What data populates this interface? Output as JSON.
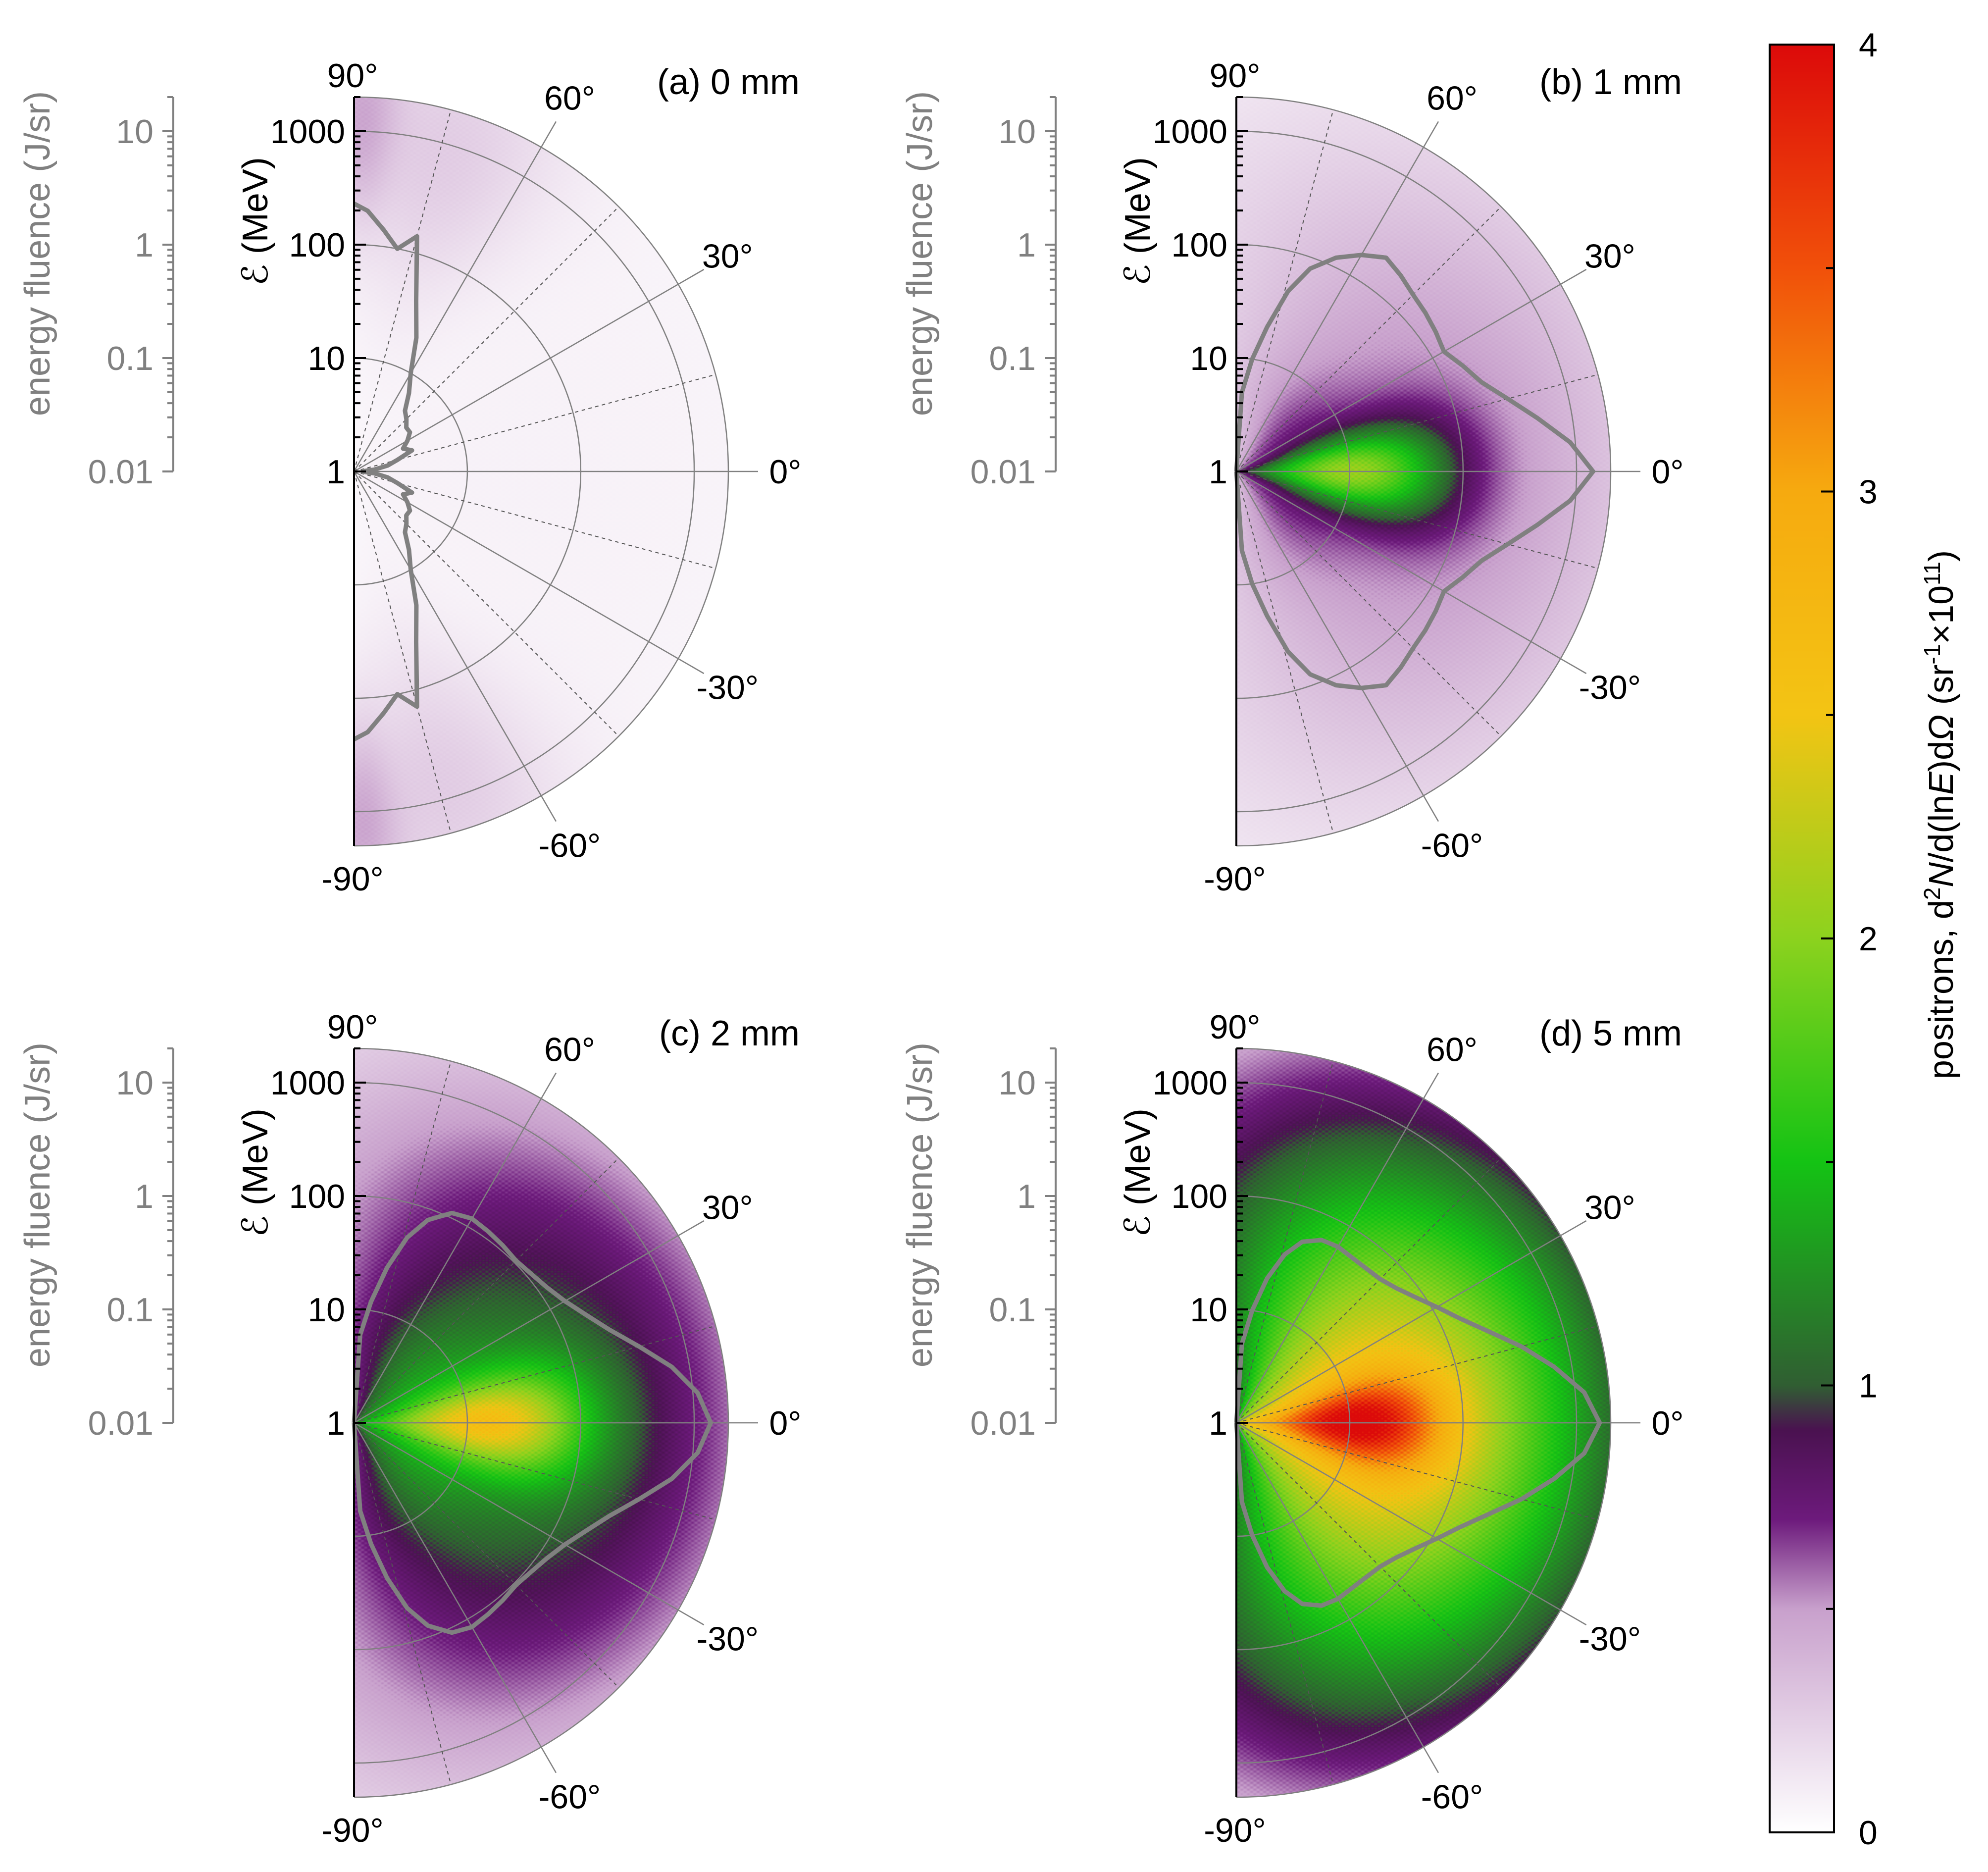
{
  "colors": {
    "purple": "#5e0f6e",
    "green": "#1ec81e",
    "yellow": "#f6c30f",
    "red": "#e8120e",
    "contour": "#808080",
    "grid": "#808080",
    "fluence_axis": "#808080"
  },
  "chart_data": [
    {
      "type": "heatmap",
      "subtype": "polar-half",
      "title": "(a) 0 mm",
      "ylabel": "ℰ (MeV)",
      "fluence_label": "energy fluence (J/sr)",
      "energy_axis": {
        "scale": "log",
        "range": [
          1,
          2000
        ],
        "ticks": [
          1,
          10,
          100,
          1000
        ],
        "tick_labels": [
          "1",
          "10",
          "100",
          "1000"
        ]
      },
      "fluence_axis": {
        "scale": "log",
        "range": [
          0.01,
          20
        ],
        "ticks": [
          0.01,
          0.1,
          1,
          10
        ],
        "tick_labels": [
          "0.01",
          "0.1",
          "1",
          "10"
        ]
      },
      "angle_axis": {
        "range": [
          -90,
          90
        ],
        "ticks": [
          -90,
          -60,
          -30,
          0,
          30,
          60,
          90
        ],
        "tick_labels": [
          "-90°",
          "-60°",
          "-30°",
          "0°",
          "30°",
          "60°",
          "90°"
        ]
      },
      "blobs": [
        {
          "angle": 0,
          "spread": 90,
          "energy": 30,
          "spread_decades": 3.3,
          "value": 0.07
        },
        {
          "angle": 75,
          "spread": 14,
          "energy": 800,
          "spread_decades": 0.9,
          "value": 0.22
        },
        {
          "angle": -75,
          "spread": 14,
          "energy": 800,
          "spread_decades": 0.9,
          "value": 0.22
        },
        {
          "angle": 89,
          "spread": 4,
          "energy": 1500,
          "spread_decades": 0.6,
          "value": 0.3
        },
        {
          "angle": -89,
          "spread": 4,
          "energy": 1500,
          "spread_decades": 0.6,
          "value": 0.3
        }
      ],
      "fluence_curve": {
        "angles": [
          90,
          87,
          83,
          79,
          75,
          70,
          65,
          60,
          55,
          50,
          45,
          40,
          35,
          30,
          25,
          20,
          15,
          10,
          5,
          2,
          0,
          -2,
          -5,
          -10,
          -15,
          -20,
          -25,
          -30,
          -35,
          -40,
          -45,
          -50,
          -55,
          -60,
          -65,
          -70,
          -75,
          -79,
          -83,
          -87,
          -90
        ],
        "fluence": [
          2.3,
          2.0,
          1.4,
          1.0,
          1.4,
          0.4,
          0.2,
          0.1,
          0.07,
          0.05,
          0.045,
          0.04,
          0.04,
          0.035,
          0.03,
          0.035,
          0.025,
          0.02,
          0.015,
          0.012,
          0.012,
          0.012,
          0.015,
          0.02,
          0.025,
          0.035,
          0.03,
          0.035,
          0.04,
          0.04,
          0.045,
          0.05,
          0.07,
          0.1,
          0.2,
          0.4,
          1.4,
          1.0,
          1.4,
          2.0,
          2.3
        ]
      }
    },
    {
      "type": "heatmap",
      "subtype": "polar-half",
      "title": "(b) 1 mm",
      "ylabel": "ℰ (MeV)",
      "fluence_label": "energy fluence (J/sr)",
      "energy_axis": {
        "scale": "log",
        "range": [
          1,
          2000
        ],
        "ticks": [
          1,
          10,
          100,
          1000
        ],
        "tick_labels": [
          "1",
          "10",
          "100",
          "1000"
        ]
      },
      "fluence_axis": {
        "scale": "log",
        "range": [
          0.01,
          20
        ],
        "ticks": [
          0.01,
          0.1,
          1,
          10
        ],
        "tick_labels": [
          "0.01",
          "0.1",
          "1",
          "10"
        ]
      },
      "angle_axis": {
        "range": [
          -90,
          90
        ],
        "ticks": [
          -90,
          -60,
          -30,
          0,
          30,
          60,
          90
        ],
        "tick_labels": [
          "-90°",
          "-60°",
          "-30°",
          "0°",
          "30°",
          "60°",
          "90°"
        ]
      },
      "blobs": [
        {
          "angle": 0,
          "spread": 70,
          "energy": 15,
          "spread_decades": 1.9,
          "value": 0.6
        },
        {
          "angle": 0,
          "spread": 12,
          "energy": 12,
          "spread_decades": 0.55,
          "value": 1.35
        },
        {
          "angle": 0,
          "spread": 55,
          "energy": 3,
          "spread_decades": 0.45,
          "value": 0.25
        }
      ],
      "fluence_curve": {
        "angles": [
          90,
          86,
          82,
          78,
          74,
          70,
          65,
          60,
          55,
          50,
          45,
          40,
          35,
          30,
          25,
          20,
          15,
          10,
          5,
          0,
          -5,
          -10,
          -15,
          -20,
          -25,
          -30,
          -35,
          -40,
          -45,
          -50,
          -55,
          -60,
          -65,
          -70,
          -74,
          -78,
          -82,
          -86,
          -90
        ],
        "fluence": [
          0.01,
          0.05,
          0.1,
          0.2,
          0.45,
          0.8,
          1.2,
          1.6,
          2.0,
          1.8,
          1.6,
          1.5,
          1.4,
          1.3,
          1.6,
          2.0,
          3.0,
          5.0,
          9.0,
          14.0,
          9.0,
          5.0,
          3.0,
          2.0,
          1.6,
          1.3,
          1.4,
          1.5,
          1.6,
          1.8,
          2.0,
          1.6,
          1.2,
          0.8,
          0.45,
          0.2,
          0.1,
          0.05,
          0.01
        ]
      }
    },
    {
      "type": "heatmap",
      "subtype": "polar-half",
      "title": "(c) 2 mm",
      "ylabel": "ℰ (MeV)",
      "fluence_label": "energy fluence (J/sr)",
      "energy_axis": {
        "scale": "log",
        "range": [
          1,
          2000
        ],
        "ticks": [
          1,
          10,
          100,
          1000
        ],
        "tick_labels": [
          "1",
          "10",
          "100",
          "1000"
        ]
      },
      "fluence_axis": {
        "scale": "log",
        "range": [
          0.01,
          20
        ],
        "ticks": [
          0.01,
          0.1,
          1,
          10
        ],
        "tick_labels": [
          "0.01",
          "0.1",
          "1",
          "10"
        ]
      },
      "angle_axis": {
        "range": [
          -90,
          90
        ],
        "ticks": [
          -90,
          -60,
          -30,
          0,
          30,
          60,
          90
        ],
        "tick_labels": [
          "-90°",
          "-60°",
          "-30°",
          "0°",
          "30°",
          "60°",
          "90°"
        ]
      },
      "blobs": [
        {
          "angle": 0,
          "spread": 72,
          "energy": 12,
          "spread_decades": 1.8,
          "value": 1.25
        },
        {
          "angle": 0,
          "spread": 12,
          "energy": 18,
          "spread_decades": 0.55,
          "value": 1.3
        },
        {
          "angle": 0,
          "spread": 68,
          "energy": 3,
          "spread_decades": 0.5,
          "value": 0.3
        }
      ],
      "fluence_curve": {
        "angles": [
          90,
          86,
          82,
          78,
          74,
          70,
          65,
          60,
          55,
          50,
          45,
          40,
          35,
          30,
          25,
          20,
          15,
          10,
          5,
          0,
          -5,
          -10,
          -15,
          -20,
          -25,
          -30,
          -35,
          -40,
          -45,
          -50,
          -55,
          -60,
          -65,
          -70,
          -74,
          -78,
          -82,
          -86,
          -90
        ],
        "fluence": [
          0.01,
          0.06,
          0.12,
          0.25,
          0.5,
          0.8,
          1.1,
          1.2,
          1.15,
          1.1,
          1.05,
          1.1,
          1.2,
          1.4,
          1.8,
          2.5,
          4.0,
          7.0,
          11.0,
          14.0,
          11.0,
          7.0,
          4.0,
          2.5,
          1.8,
          1.4,
          1.2,
          1.1,
          1.05,
          1.1,
          1.15,
          1.2,
          1.1,
          0.8,
          0.5,
          0.25,
          0.12,
          0.06,
          0.01
        ]
      }
    },
    {
      "type": "heatmap",
      "subtype": "polar-half",
      "title": "(d) 5 mm",
      "ylabel": "ℰ (MeV)",
      "fluence_label": "energy fluence (J/sr)",
      "energy_axis": {
        "scale": "log",
        "range": [
          1,
          2000
        ],
        "ticks": [
          1,
          10,
          100,
          1000
        ],
        "tick_labels": [
          "1",
          "10",
          "100",
          "1000"
        ]
      },
      "fluence_axis": {
        "scale": "log",
        "range": [
          0.01,
          20
        ],
        "ticks": [
          0.01,
          0.1,
          1,
          10
        ],
        "tick_labels": [
          "0.01",
          "0.1",
          "1",
          "10"
        ]
      },
      "angle_axis": {
        "range": [
          -90,
          90
        ],
        "ticks": [
          -90,
          -60,
          -30,
          0,
          30,
          60,
          90
        ],
        "tick_labels": [
          "-90°",
          "-60°",
          "-30°",
          "0°",
          "30°",
          "60°",
          "90°"
        ]
      },
      "blobs": [
        {
          "angle": 0,
          "spread": 70,
          "energy": 10,
          "spread_decades": 1.7,
          "value": 2.7
        },
        {
          "angle": 0,
          "spread": 12,
          "energy": 12,
          "spread_decades": 0.5,
          "value": 1.5
        }
      ],
      "fluence_curve": {
        "angles": [
          90,
          86,
          82,
          78,
          74,
          70,
          65,
          60,
          55,
          50,
          45,
          40,
          35,
          30,
          25,
          20,
          15,
          10,
          5,
          0,
          -5,
          -10,
          -15,
          -20,
          -25,
          -30,
          -35,
          -40,
          -45,
          -50,
          -55,
          -60,
          -65,
          -70,
          -74,
          -78,
          -82,
          -86,
          -90
        ],
        "fluence": [
          0.01,
          0.05,
          0.1,
          0.2,
          0.35,
          0.5,
          0.6,
          0.62,
          0.6,
          0.6,
          0.62,
          0.7,
          0.85,
          1.1,
          1.5,
          2.3,
          4.0,
          7.0,
          12.0,
          16.0,
          12.0,
          7.0,
          4.0,
          2.3,
          1.5,
          1.1,
          0.85,
          0.7,
          0.62,
          0.6,
          0.6,
          0.62,
          0.6,
          0.5,
          0.35,
          0.2,
          0.1,
          0.05,
          0.01
        ]
      }
    }
  ],
  "colorbar": {
    "label_parts": [
      "positrons, d",
      "2",
      "N",
      "/d(ln",
      "E",
      ")d",
      "Ω",
      " (sr",
      "-1",
      "×10",
      "11",
      ")"
    ],
    "range": [
      0,
      4
    ],
    "ticks": [
      0,
      1,
      2,
      3,
      4
    ],
    "tick_labels": [
      "0",
      "1",
      "2",
      "3",
      "4"
    ],
    "stops": [
      {
        "value": 0.0,
        "color": "#ffffff"
      },
      {
        "value": 0.5,
        "color": "#c8a0cc"
      },
      {
        "value": 0.7,
        "color": "#6d1a7c"
      },
      {
        "value": 0.9,
        "color": "#4a1250"
      },
      {
        "value": 1.0,
        "color": "#305e32"
      },
      {
        "value": 1.5,
        "color": "#14c314"
      },
      {
        "value": 2.0,
        "color": "#8cd21e"
      },
      {
        "value": 2.5,
        "color": "#f3c414"
      },
      {
        "value": 3.0,
        "color": "#f6aa0f"
      },
      {
        "value": 3.5,
        "color": "#f1500a"
      },
      {
        "value": 4.0,
        "color": "#dc0a0a"
      }
    ]
  }
}
